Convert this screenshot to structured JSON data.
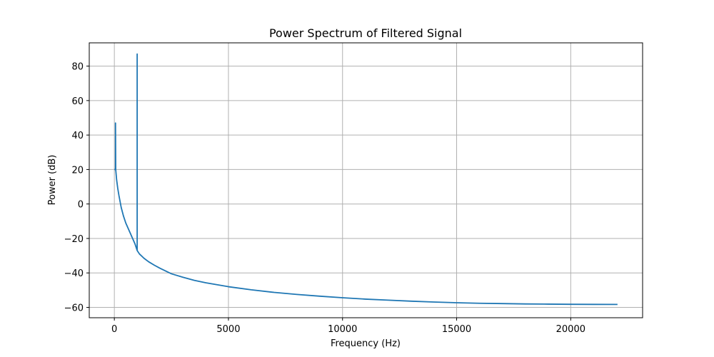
{
  "chart_data": {
    "type": "line",
    "title": "Power Spectrum of Filtered Signal",
    "xlabel": "Frequency (Hz)",
    "ylabel": "Power (dB)",
    "xlim": [
      -1100,
      23150
    ],
    "ylim": [
      -66,
      93.5
    ],
    "xticks": [
      0,
      5000,
      10000,
      15000,
      20000
    ],
    "yticks": [
      -60,
      -40,
      -20,
      0,
      20,
      40,
      60,
      80
    ],
    "xtick_labels": [
      "0",
      "5000",
      "10000",
      "15000",
      "20000"
    ],
    "ytick_labels": [
      "−60",
      "−40",
      "−20",
      "0",
      "20",
      "40",
      "60",
      "80"
    ],
    "grid": true,
    "series": [
      {
        "color": "#1f77b4",
        "x": [
          0,
          50,
          50,
          60,
          100,
          150,
          200,
          300,
          400,
          500,
          600,
          700,
          800,
          900,
          1000,
          1000,
          1000,
          1100,
          1300,
          1500,
          1750,
          2000,
          2500,
          3000,
          3500,
          4000,
          5000,
          6000,
          7000,
          8000,
          9000,
          10000,
          11000,
          12000,
          13000,
          14000,
          15000,
          16000,
          17000,
          18000,
          19000,
          20000,
          21000,
          22050
        ],
        "y": [
          20,
          20,
          47,
          20,
          14,
          9,
          5,
          -2,
          -7,
          -11,
          -14,
          -17,
          -20,
          -23,
          -27,
          87,
          -27,
          -29,
          -31.5,
          -33.5,
          -35.5,
          -37.3,
          -40.5,
          -42.5,
          -44.3,
          -45.7,
          -48,
          -49.8,
          -51.3,
          -52.5,
          -53.5,
          -54.4,
          -55.2,
          -55.8,
          -56.4,
          -56.9,
          -57.3,
          -57.6,
          -57.8,
          -58,
          -58.1,
          -58.2,
          -58.25,
          -58.3
        ]
      }
    ]
  }
}
